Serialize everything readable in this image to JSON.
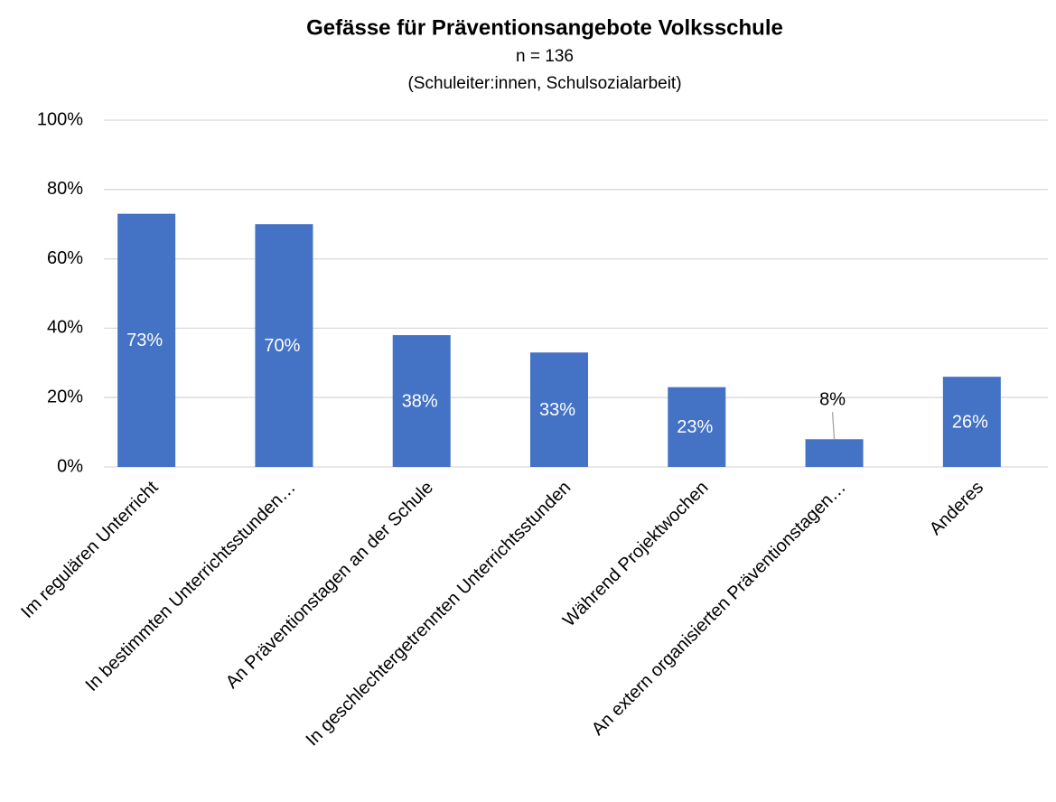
{
  "chart_data": {
    "type": "bar",
    "title": "Gefässe für Präventionsangebote Volksschule",
    "subtitle": [
      "n = 136",
      "(Schuleiter:innen, Schulsozialarbeit)"
    ],
    "categories": [
      "Im regulären Unterricht",
      "In bestimmten Unterrichtsstunden…",
      "An Präventionstagen an der Schule",
      "In geschlechtergetrennten Unterrichtsstunden",
      "Während Projektwochen",
      "An extern organisierten Präventionstagen…",
      "Anderes"
    ],
    "values": [
      73,
      70,
      38,
      33,
      23,
      8,
      26
    ],
    "value_labels": [
      "73%",
      "70%",
      "38%",
      "33%",
      "23%",
      "8%",
      "26%"
    ],
    "color": "#4472c4",
    "ylim": [
      0,
      100
    ],
    "yticks": [
      {
        "value": 0,
        "label": "0%"
      },
      {
        "value": 20,
        "label": "20%"
      },
      {
        "value": 40,
        "label": "40%"
      },
      {
        "value": 60,
        "label": "60%"
      },
      {
        "value": 80,
        "label": "80%"
      },
      {
        "value": 100,
        "label": "100%"
      }
    ],
    "grid": true
  }
}
